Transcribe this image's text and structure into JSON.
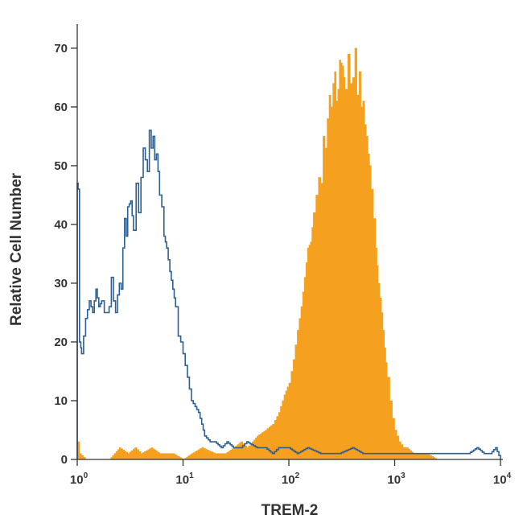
{
  "chart_data": {
    "type": "area",
    "xlabel": "TREM-2",
    "ylabel": "Relative Cell Number",
    "xscale": "log",
    "xlim": [
      1,
      10000
    ],
    "ylim": [
      0,
      73
    ],
    "grid": false,
    "x_ticks": [
      {
        "value": 1,
        "base": "10",
        "exp": "0"
      },
      {
        "value": 10,
        "base": "10",
        "exp": "1"
      },
      {
        "value": 100,
        "base": "10",
        "exp": "2"
      },
      {
        "value": 1000,
        "base": "10",
        "exp": "3"
      },
      {
        "value": 10000,
        "base": "10",
        "exp": "4"
      }
    ],
    "y_ticks": [
      {
        "value": 0,
        "label": "0"
      },
      {
        "value": 10,
        "label": "10"
      },
      {
        "value": 20,
        "label": "20"
      },
      {
        "value": 30,
        "label": "30"
      },
      {
        "value": 40,
        "label": "40"
      },
      {
        "value": 50,
        "label": "50"
      },
      {
        "value": 60,
        "label": "60"
      },
      {
        "value": 70,
        "label": "70"
      }
    ],
    "series": [
      {
        "style": "filled",
        "color": "#f5a01f",
        "x": [
          1.0,
          1.05,
          1.2,
          1.5,
          2.0,
          2.5,
          3.0,
          3.5,
          4.0,
          5.0,
          6.0,
          8.0,
          10.0,
          12.0,
          15.0,
          20.0,
          25.0,
          30.0,
          35.0,
          40.0,
          45.0,
          50.0,
          60.0,
          70.0,
          80.0,
          90.0,
          100.0,
          110.0,
          120.0,
          130.0,
          140.0,
          150.0,
          160.0,
          170.0,
          180.0,
          190.0,
          200.0,
          210.0,
          220.0,
          230.0,
          240.0,
          250.0,
          260.0,
          270.0,
          280.0,
          290.0,
          300.0,
          320.0,
          340.0,
          360.0,
          380.0,
          400.0,
          420.0,
          440.0,
          460.0,
          480.0,
          500.0,
          520.0,
          540.0,
          560.0,
          580.0,
          600.0,
          630.0,
          660.0,
          700.0,
          750.0,
          800.0,
          850.0,
          900.0,
          950.0,
          1000.0,
          1100.0,
          1200.0,
          1300.0,
          1500.0,
          1700.0,
          2000.0,
          2500.0,
          3000.0,
          4000.0,
          6000.0,
          10000.0
        ],
        "values": [
          3,
          1,
          0,
          0,
          0,
          2,
          1,
          2,
          1,
          2,
          1,
          1,
          0,
          1,
          2,
          1,
          1,
          2,
          3,
          2,
          3,
          4,
          5,
          6,
          8,
          11,
          13,
          17,
          22,
          26,
          31,
          36,
          37,
          42,
          45,
          48,
          47,
          55,
          53,
          58,
          62,
          60,
          64,
          66,
          61,
          63,
          68,
          67,
          63,
          69,
          64,
          65,
          70,
          62,
          66,
          60,
          61,
          57,
          55,
          52,
          50,
          46,
          41,
          36,
          30,
          25,
          19,
          14,
          10,
          7,
          5,
          3,
          2,
          2,
          1,
          1,
          1,
          0,
          0,
          0,
          0,
          0
        ]
      },
      {
        "style": "line",
        "color": "#2e5f8e",
        "x": [
          1.0,
          1.02,
          1.05,
          1.08,
          1.1,
          1.2,
          1.3,
          1.4,
          1.5,
          1.6,
          1.7,
          1.8,
          1.9,
          2.0,
          2.1,
          2.2,
          2.3,
          2.4,
          2.5,
          2.6,
          2.7,
          2.8,
          2.9,
          3.0,
          3.2,
          3.4,
          3.6,
          3.8,
          4.0,
          4.2,
          4.4,
          4.6,
          4.8,
          5.0,
          5.2,
          5.4,
          5.6,
          5.8,
          6.0,
          6.3,
          6.6,
          7.0,
          7.5,
          8.0,
          8.5,
          9.0,
          9.5,
          10.0,
          11.0,
          12.0,
          13.0,
          14.0,
          15.0,
          16.0,
          18.0,
          20.0,
          23.0,
          26.0,
          30.0,
          35.0,
          40.0,
          50.0,
          60.0,
          70.0,
          80.0,
          100.0,
          120.0,
          150.0,
          200.0,
          250.0,
          300.0,
          400.0,
          500.0,
          600.0,
          700.0,
          800.0,
          1000.0,
          1500.0,
          2000.0,
          3000.0,
          4000.0,
          5000.0,
          6000.0,
          7000.0,
          8000.0,
          9000.0,
          10000.0
        ],
        "values": [
          47,
          46,
          20,
          19,
          18,
          24,
          27,
          25,
          29,
          26,
          27,
          25,
          25,
          26,
          31,
          27,
          25,
          28,
          30,
          29,
          36,
          41,
          38,
          43,
          44,
          39,
          47,
          42,
          48,
          53,
          51,
          49,
          56,
          53,
          55,
          51,
          52,
          49,
          45,
          43,
          38,
          36,
          32,
          29,
          26,
          21,
          20,
          18,
          14,
          10,
          9,
          8,
          6,
          4,
          3,
          3,
          2,
          3,
          2,
          2,
          3,
          2,
          2,
          1,
          2,
          2,
          1,
          2,
          1,
          1,
          1,
          2,
          1,
          1,
          1,
          1,
          1,
          1,
          1,
          1,
          1,
          1,
          2,
          1,
          1,
          2,
          0
        ]
      }
    ]
  }
}
